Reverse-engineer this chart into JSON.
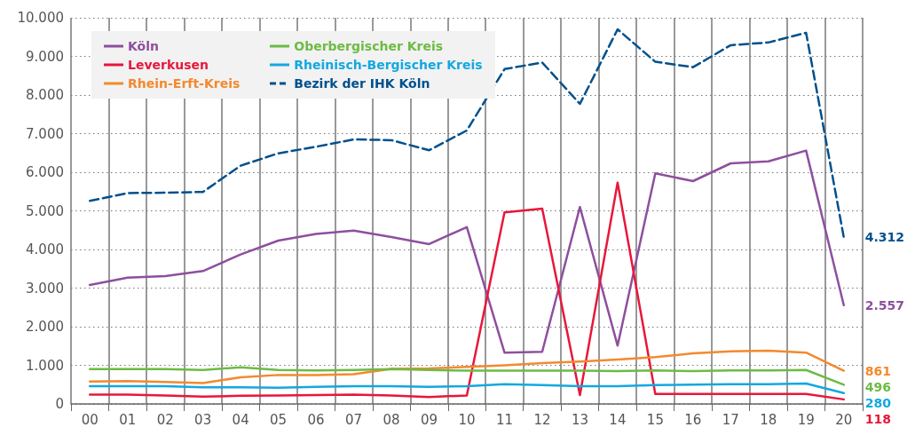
{
  "chart_data": {
    "type": "line",
    "categories": [
      "00",
      "01",
      "02",
      "03",
      "04",
      "05",
      "06",
      "07",
      "08",
      "09",
      "10",
      "11",
      "12",
      "13",
      "14",
      "15",
      "16",
      "17",
      "18",
      "19",
      "20"
    ],
    "series": [
      {
        "name": "Köln",
        "color": "#8e4f9e",
        "values": [
          3080,
          3270,
          3310,
          3440,
          3870,
          4230,
          4400,
          4490,
          4320,
          4140,
          4580,
          1330,
          1350,
          5100,
          1510,
          5970,
          5770,
          6230,
          6280,
          6560,
          2557
        ],
        "value_labels": [
          null,
          null,
          null,
          null,
          null,
          null,
          null,
          null,
          null,
          null,
          null,
          null,
          null,
          null,
          null,
          null,
          null,
          null,
          null,
          null,
          "2.557"
        ]
      },
      {
        "name": "Leverkusen",
        "color": "#e8173a",
        "values": [
          240,
          240,
          220,
          190,
          210,
          220,
          230,
          240,
          220,
          180,
          220,
          4960,
          5060,
          230,
          5730,
          260,
          260,
          260,
          260,
          260,
          118
        ],
        "value_labels": [
          null,
          null,
          null,
          null,
          null,
          null,
          null,
          null,
          null,
          null,
          null,
          null,
          null,
          null,
          null,
          null,
          null,
          null,
          null,
          null,
          "118"
        ]
      },
      {
        "name": "Rhein-Erft-Kreis",
        "color": "#f28a2e",
        "values": [
          580,
          590,
          570,
          540,
          690,
          750,
          750,
          770,
          910,
          920,
          960,
          1000,
          1060,
          1100,
          1150,
          1210,
          1310,
          1360,
          1380,
          1330,
          861
        ],
        "value_labels": [
          null,
          null,
          null,
          null,
          null,
          null,
          null,
          null,
          null,
          null,
          null,
          null,
          null,
          null,
          null,
          null,
          null,
          null,
          null,
          null,
          "861"
        ]
      },
      {
        "name": "Oberbergischer Kreis",
        "color": "#6dbb45",
        "values": [
          900,
          900,
          900,
          880,
          950,
          880,
          870,
          880,
          900,
          880,
          860,
          860,
          860,
          860,
          850,
          870,
          850,
          870,
          870,
          880,
          496
        ],
        "value_labels": [
          null,
          null,
          null,
          null,
          null,
          null,
          null,
          null,
          null,
          null,
          null,
          null,
          null,
          null,
          null,
          null,
          null,
          null,
          null,
          null,
          "496"
        ]
      },
      {
        "name": "Rheinisch-Bergischer Kreis",
        "color": "#13a8e0",
        "values": [
          460,
          460,
          460,
          430,
          430,
          420,
          440,
          460,
          460,
          440,
          460,
          510,
          490,
          460,
          460,
          490,
          500,
          510,
          510,
          530,
          280
        ],
        "value_labels": [
          null,
          null,
          null,
          null,
          null,
          null,
          null,
          null,
          null,
          null,
          null,
          null,
          null,
          null,
          null,
          null,
          null,
          null,
          null,
          null,
          "280"
        ]
      },
      {
        "name": "Bezirk der IHK Köln",
        "color": "#00508c",
        "line_style": "dashed",
        "values": [
          5260,
          5460,
          5470,
          5490,
          6170,
          6490,
          6660,
          6850,
          6830,
          6570,
          7080,
          8670,
          8840,
          7770,
          9700,
          8860,
          8720,
          9290,
          9360,
          9610,
          4312
        ],
        "value_labels": [
          null,
          null,
          null,
          null,
          null,
          null,
          null,
          null,
          null,
          null,
          null,
          null,
          null,
          null,
          null,
          null,
          null,
          null,
          null,
          null,
          "4.312"
        ]
      }
    ],
    "ylim": [
      0,
      10000
    ],
    "yticks": [
      {
        "value": 0,
        "label": "0"
      },
      {
        "value": 1000,
        "label": "1.000"
      },
      {
        "value": 2000,
        "label": "2.000"
      },
      {
        "value": 3000,
        "label": "3.000"
      },
      {
        "value": 4000,
        "label": "4.000"
      },
      {
        "value": 5000,
        "label": "5.000"
      },
      {
        "value": 6000,
        "label": "6.000"
      },
      {
        "value": 7000,
        "label": "7.000"
      },
      {
        "value": 8000,
        "label": "8.000"
      },
      {
        "value": 9000,
        "label": "9.000"
      },
      {
        "value": 10000,
        "label": "10.000"
      }
    ],
    "grid": true,
    "legend": "top left",
    "line_style": "solid",
    "marker": "none"
  }
}
